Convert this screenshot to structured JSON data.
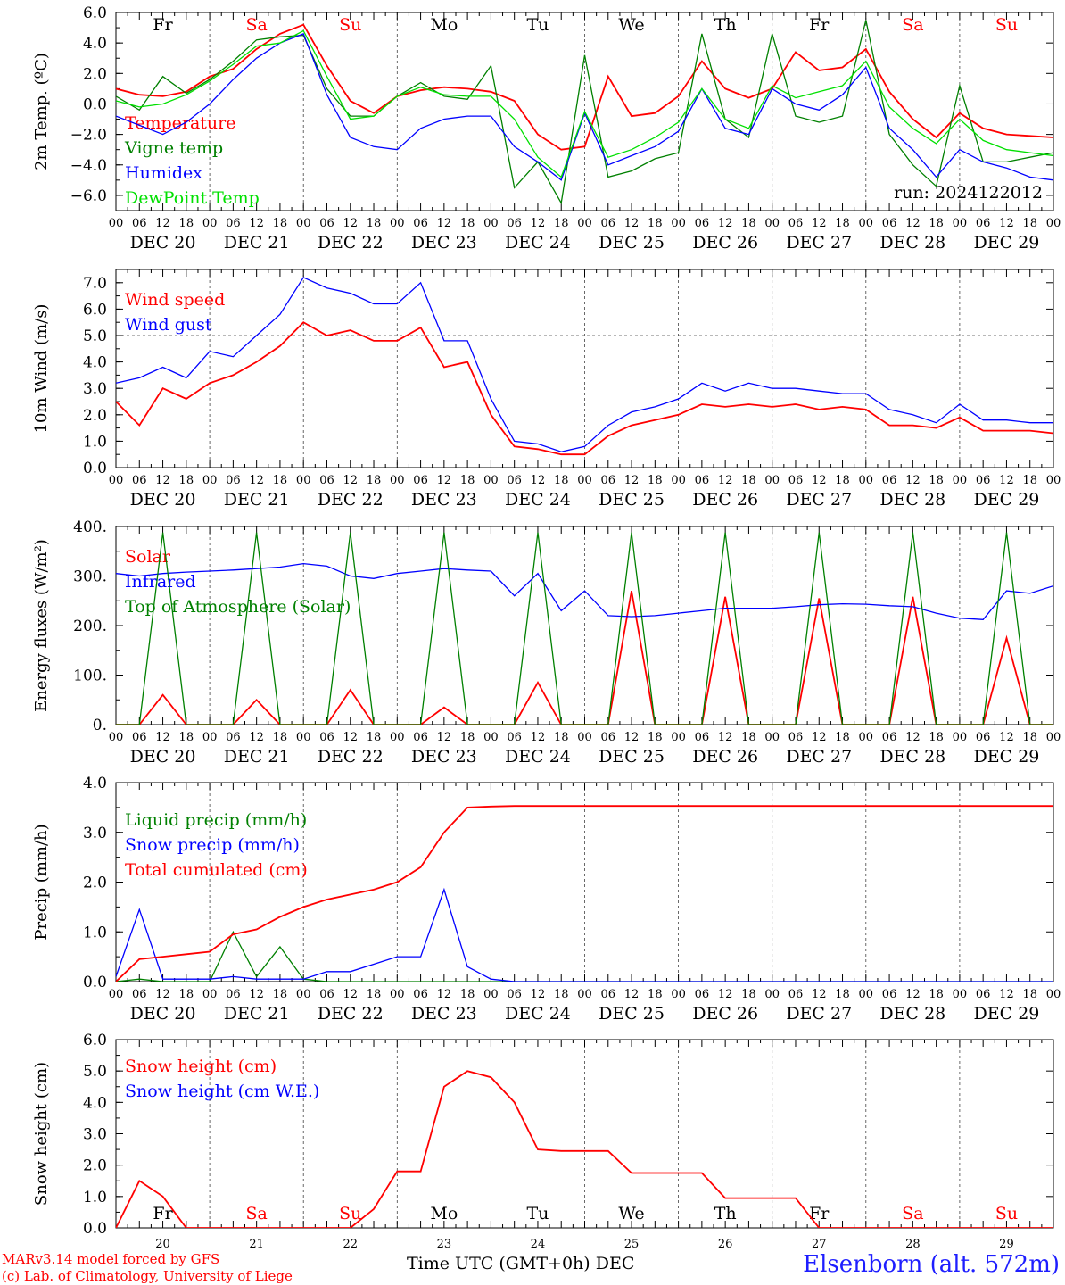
{
  "colors": {
    "red": "#ff0000",
    "blue": "#0000ff",
    "green": "#008000",
    "lightgreen": "#00e000",
    "black": "#000000",
    "weekend": "#ff0000"
  },
  "axis": {
    "hour_ticks": [
      "00",
      "06",
      "12",
      "18"
    ],
    "dates": [
      "DEC 20",
      "DEC 21",
      "DEC 22",
      "DEC 23",
      "DEC 24",
      "DEC 25",
      "DEC 26",
      "DEC 27",
      "DEC 28",
      "DEC 29"
    ],
    "weekdays": [
      "Fr",
      "Sa",
      "Su",
      "Mo",
      "Tu",
      "We",
      "Th",
      "Fr",
      "Sa",
      "Su"
    ],
    "weekend_flags": [
      false,
      true,
      true,
      false,
      false,
      false,
      false,
      false,
      true,
      true
    ],
    "day_numbers": [
      "20",
      "21",
      "22",
      "23",
      "24",
      "25",
      "26",
      "27",
      "28",
      "29"
    ]
  },
  "footer": {
    "credit_line1": "MARv3.14 model forced by GFS",
    "credit_line2": "(c) Lab. of Climatology, University of Liege",
    "xlabel": "Time UTC (GMT+0h)",
    "xunit": "DEC",
    "station": "Elsenborn (alt. 572m)"
  },
  "chart_data": [
    {
      "type": "line",
      "ylabel": "2m Temp. (ºC)",
      "ylim": [
        -7,
        6
      ],
      "yticks": [
        "6.0",
        "4.0",
        "2.0",
        "0.0",
        "−2.0",
        "−4.0",
        "−6.0"
      ],
      "ytick_values": [
        6,
        4,
        2,
        0,
        -2,
        -4,
        -6
      ],
      "zero_line": 0,
      "annotation": "run: 2024122012",
      "x_hours": [
        0,
        6,
        12,
        18,
        24,
        30,
        36,
        42,
        48,
        54,
        60,
        66,
        72,
        78,
        84,
        90,
        96,
        102,
        108,
        114,
        120,
        126,
        132,
        138,
        144,
        150,
        156,
        162,
        168,
        174,
        180,
        186,
        192,
        198,
        204,
        210,
        216,
        222,
        228,
        234,
        240
      ],
      "series": [
        {
          "name": "Temperature",
          "color": "#ff0000",
          "values": [
            1.0,
            0.6,
            0.5,
            0.8,
            1.8,
            2.3,
            3.6,
            4.6,
            5.2,
            2.5,
            0.2,
            -0.6,
            0.5,
            0.9,
            1.1,
            1.0,
            0.8,
            0.2,
            -2.0,
            -3.0,
            -2.8,
            1.8,
            -0.8,
            -0.6,
            0.5,
            2.8,
            1.0,
            0.4,
            1.0,
            3.4,
            2.2,
            2.4,
            3.6,
            0.8,
            -1.0,
            -2.2,
            -0.6,
            -1.6,
            -2.0,
            -2.1,
            -2.2
          ]
        },
        {
          "name": "Vigne temp",
          "color": "#008000",
          "values": [
            0.5,
            -0.4,
            1.8,
            0.7,
            1.6,
            2.8,
            4.2,
            4.4,
            4.5,
            1.0,
            -0.8,
            -0.8,
            0.5,
            1.4,
            0.5,
            0.3,
            2.5,
            -5.5,
            -3.8,
            -6.5,
            3.2,
            -4.8,
            -4.4,
            -3.6,
            -3.2,
            4.6,
            -1.0,
            -2.2,
            4.6,
            -0.8,
            -1.2,
            -0.8,
            5.5,
            -2.0,
            -4.0,
            -5.4,
            1.2,
            -3.8,
            -3.8,
            -3.5,
            -3.2
          ]
        },
        {
          "name": "Humidex",
          "color": "#0000ff",
          "values": [
            -0.8,
            -1.4,
            -2.0,
            -1.2,
            0.0,
            1.6,
            3.0,
            4.0,
            4.6,
            0.6,
            -2.2,
            -2.8,
            -3.0,
            -1.6,
            -1.0,
            -0.8,
            -0.8,
            -2.8,
            -3.8,
            -5.0,
            -0.6,
            -4.0,
            -3.4,
            -2.8,
            -1.8,
            1.0,
            -1.6,
            -2.0,
            1.0,
            0.0,
            -0.4,
            0.6,
            2.4,
            -1.6,
            -3.0,
            -4.8,
            -3.0,
            -3.8,
            -4.2,
            -4.8,
            -5.0
          ]
        },
        {
          "name": "DewPoint Temp",
          "color": "#00e000",
          "values": [
            0.2,
            -0.2,
            0.0,
            0.6,
            1.5,
            2.6,
            3.8,
            4.0,
            4.8,
            1.8,
            -1.0,
            -0.8,
            0.5,
            1.1,
            0.6,
            0.5,
            0.5,
            -1.0,
            -3.5,
            -4.8,
            -0.5,
            -3.5,
            -3.0,
            -2.2,
            -1.2,
            1.0,
            -1.0,
            -1.6,
            1.2,
            0.4,
            0.8,
            1.2,
            2.8,
            -0.2,
            -1.6,
            -2.6,
            -1.0,
            -2.4,
            -3.0,
            -3.2,
            -3.4
          ]
        }
      ],
      "legend_placement": "left"
    },
    {
      "type": "line",
      "ylabel": "10m Wind (m/s)",
      "ylim": [
        0,
        7.5
      ],
      "yticks": [
        "7.0",
        "6.0",
        "5.0",
        "4.0",
        "3.0",
        "2.0",
        "1.0",
        "0.0"
      ],
      "ytick_values": [
        7,
        6,
        5,
        4,
        3,
        2,
        1,
        0
      ],
      "ref_line": 5,
      "x_hours": [
        0,
        6,
        12,
        18,
        24,
        30,
        36,
        42,
        48,
        54,
        60,
        66,
        72,
        78,
        84,
        90,
        96,
        102,
        108,
        114,
        120,
        126,
        132,
        138,
        144,
        150,
        156,
        162,
        168,
        174,
        180,
        186,
        192,
        198,
        204,
        210,
        216,
        222,
        228,
        234,
        240
      ],
      "series": [
        {
          "name": "Wind speed",
          "color": "#ff0000",
          "values": [
            2.5,
            1.6,
            3.0,
            2.6,
            3.2,
            3.5,
            4.0,
            4.6,
            5.5,
            5.0,
            5.2,
            4.8,
            4.8,
            5.3,
            3.8,
            4.0,
            2.0,
            0.8,
            0.7,
            0.5,
            0.5,
            1.2,
            1.6,
            1.8,
            2.0,
            2.4,
            2.3,
            2.4,
            2.3,
            2.4,
            2.2,
            2.3,
            2.2,
            1.6,
            1.6,
            1.5,
            1.9,
            1.4,
            1.4,
            1.4,
            1.3
          ]
        },
        {
          "name": "Wind gust",
          "color": "#0000ff",
          "values": [
            3.2,
            3.4,
            3.8,
            3.4,
            4.4,
            4.2,
            5.0,
            5.8,
            7.2,
            6.8,
            6.6,
            6.2,
            6.2,
            7.0,
            4.8,
            4.8,
            2.6,
            1.0,
            0.9,
            0.6,
            0.8,
            1.6,
            2.1,
            2.3,
            2.6,
            3.2,
            2.9,
            3.2,
            3.0,
            3.0,
            2.9,
            2.8,
            2.8,
            2.2,
            2.0,
            1.7,
            2.4,
            1.8,
            1.8,
            1.7,
            1.7
          ]
        }
      ],
      "legend_placement": "left"
    },
    {
      "type": "line",
      "ylabel": "Energy fluxes (W/m²)",
      "ylim": [
        0,
        400
      ],
      "yticks": [
        "400.",
        "300.",
        "200.",
        "100.",
        "0."
      ],
      "ytick_values": [
        400,
        300,
        200,
        100,
        0
      ],
      "x_hours": [
        0,
        6,
        12,
        18,
        24,
        30,
        36,
        42,
        48,
        54,
        60,
        66,
        72,
        78,
        84,
        90,
        96,
        102,
        108,
        114,
        120,
        126,
        132,
        138,
        144,
        150,
        156,
        162,
        168,
        174,
        180,
        186,
        192,
        198,
        204,
        210,
        216,
        222,
        228,
        234,
        240
      ],
      "series": [
        {
          "name": "Solar",
          "color": "#ff0000",
          "values": [
            0,
            0,
            60,
            0,
            0,
            0,
            50,
            0,
            0,
            0,
            70,
            0,
            0,
            0,
            35,
            0,
            0,
            0,
            85,
            0,
            0,
            0,
            270,
            0,
            0,
            0,
            258,
            0,
            0,
            0,
            255,
            0,
            0,
            0,
            258,
            0,
            0,
            0,
            175,
            0,
            0
          ]
        },
        {
          "name": "Infrared",
          "color": "#0000ff",
          "values": [
            305,
            300,
            305,
            308,
            310,
            312,
            315,
            318,
            325,
            320,
            300,
            295,
            305,
            310,
            315,
            312,
            310,
            260,
            305,
            230,
            270,
            220,
            218,
            220,
            225,
            230,
            235,
            235,
            235,
            238,
            242,
            244,
            243,
            240,
            238,
            225,
            215,
            212,
            270,
            265,
            280
          ]
        },
        {
          "name": "Top of Atmosphere (Solar)",
          "color": "#008000",
          "values": [
            0,
            0,
            388,
            0,
            0,
            0,
            388,
            0,
            0,
            0,
            388,
            0,
            0,
            0,
            388,
            0,
            0,
            0,
            388,
            0,
            0,
            0,
            388,
            0,
            0,
            0,
            388,
            0,
            0,
            0,
            388,
            0,
            0,
            0,
            388,
            0,
            0,
            0,
            388,
            0,
            0
          ]
        }
      ],
      "legend_placement": "left"
    },
    {
      "type": "line",
      "ylabel": "Precip (mm/h)",
      "ylim": [
        0,
        4
      ],
      "yticks": [
        "4.0",
        "3.0",
        "2.0",
        "1.0",
        "0.0"
      ],
      "ytick_values": [
        4,
        3,
        2,
        1,
        0
      ],
      "x_hours": [
        0,
        6,
        12,
        18,
        24,
        30,
        36,
        42,
        48,
        54,
        60,
        66,
        72,
        78,
        84,
        90,
        96,
        102,
        108,
        114,
        120,
        126,
        132,
        138,
        144,
        150,
        156,
        162,
        168,
        174,
        180,
        186,
        192,
        198,
        204,
        210,
        216,
        222,
        228,
        234,
        240
      ],
      "series": [
        {
          "name": "Liquid precip (mm/h)",
          "color": "#008000",
          "values": [
            0,
            0.05,
            0,
            0,
            0,
            1.0,
            0.1,
            0.7,
            0.05,
            0,
            0,
            0,
            0,
            0,
            0,
            0,
            0,
            0,
            0,
            0,
            0,
            0,
            0,
            0,
            0,
            0,
            0,
            0,
            0,
            0,
            0,
            0,
            0,
            0,
            0,
            0,
            0,
            0,
            0,
            0,
            0
          ]
        },
        {
          "name": "Snow precip (mm/h)",
          "color": "#0000ff",
          "values": [
            0.1,
            1.45,
            0.05,
            0.05,
            0.05,
            0.1,
            0.05,
            0.05,
            0.05,
            0.2,
            0.2,
            0.35,
            0.5,
            0.5,
            1.85,
            0.3,
            0.05,
            0,
            0,
            0,
            0,
            0,
            0,
            0,
            0,
            0,
            0,
            0,
            0,
            0,
            0,
            0,
            0,
            0,
            0,
            0,
            0,
            0,
            0,
            0,
            0
          ]
        },
        {
          "name": "Total cumulated (cm)",
          "color": "#ff0000",
          "values": [
            0.0,
            0.45,
            0.5,
            0.55,
            0.6,
            0.95,
            1.05,
            1.3,
            1.5,
            1.65,
            1.75,
            1.85,
            2.0,
            2.3,
            3.0,
            3.5,
            3.52,
            3.53,
            3.53,
            3.53,
            3.53,
            3.53,
            3.53,
            3.53,
            3.53,
            3.53,
            3.53,
            3.53,
            3.53,
            3.53,
            3.53,
            3.53,
            3.53,
            3.53,
            3.53,
            3.53,
            3.53,
            3.53,
            3.53,
            3.53,
            3.53
          ]
        }
      ],
      "legend_placement": "left"
    },
    {
      "type": "line",
      "ylabel": "Snow height (cm)",
      "ylim": [
        0,
        6
      ],
      "yticks": [
        "6.0",
        "5.0",
        "4.0",
        "3.0",
        "2.0",
        "1.0",
        "0.0"
      ],
      "ytick_values": [
        6,
        5,
        4,
        3,
        2,
        1,
        0
      ],
      "x_hours": [
        0,
        6,
        12,
        18,
        24,
        30,
        36,
        42,
        48,
        54,
        60,
        66,
        72,
        78,
        84,
        90,
        96,
        102,
        108,
        114,
        120,
        126,
        132,
        138,
        144,
        150,
        156,
        162,
        168,
        174,
        180,
        186,
        192,
        198,
        204,
        210,
        216,
        222,
        228,
        234,
        240
      ],
      "series": [
        {
          "name": "Snow height (cm)",
          "color": "#ff0000",
          "values": [
            0,
            1.5,
            1.0,
            0,
            0,
            0,
            0,
            0,
            0,
            0,
            0,
            0.6,
            1.8,
            1.8,
            4.5,
            5.0,
            4.8,
            4.0,
            2.5,
            2.45,
            2.45,
            2.45,
            1.75,
            1.75,
            1.75,
            1.75,
            0.95,
            0.95,
            0.95,
            0.95,
            0,
            0,
            0,
            0,
            0,
            0,
            0,
            0,
            0,
            0,
            0
          ]
        },
        {
          "name": "Snow height (cm W.E.)",
          "color": "#0000ff",
          "values": []
        }
      ],
      "legend_placement": "left"
    }
  ]
}
